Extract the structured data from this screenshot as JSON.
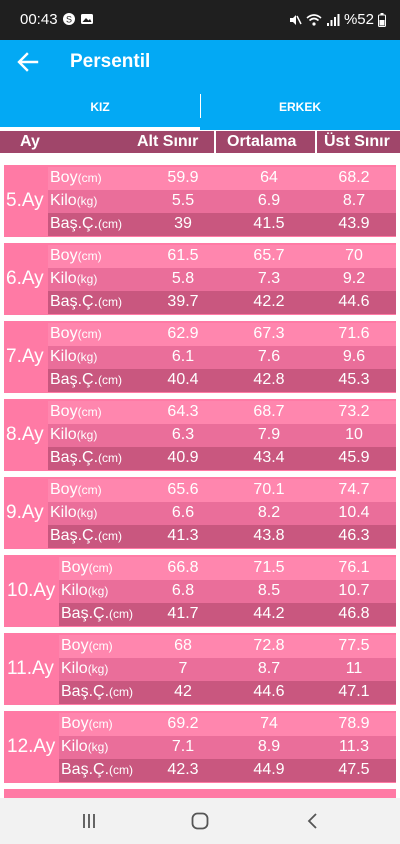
{
  "status": {
    "time": "00:43",
    "battery": "%52"
  },
  "appbar": {
    "title": "Persentil"
  },
  "tabs": [
    {
      "label": "KIZ"
    },
    {
      "label": "ERKEK"
    }
  ],
  "header": {
    "ay": "Ay",
    "alt": "Alt Sınır",
    "ort": "Ortalama",
    "ust": "Üst Sınır"
  },
  "row_labels": [
    {
      "name": "Boy",
      "unit": "(cm)"
    },
    {
      "name": "Kilo",
      "unit": "(kg)"
    },
    {
      "name": "Baş.Ç.",
      "unit": "(cm)"
    }
  ],
  "blocks": [
    {
      "ay": "5.Ay",
      "rows": [
        [
          "59.9",
          "64",
          "68.2"
        ],
        [
          "5.5",
          "6.9",
          "8.7"
        ],
        [
          "39",
          "41.5",
          "43.9"
        ]
      ]
    },
    {
      "ay": "6.Ay",
      "rows": [
        [
          "61.5",
          "65.7",
          "70"
        ],
        [
          "5.8",
          "7.3",
          "9.2"
        ],
        [
          "39.7",
          "42.2",
          "44.6"
        ]
      ]
    },
    {
      "ay": "7.Ay",
      "rows": [
        [
          "62.9",
          "67.3",
          "71.6"
        ],
        [
          "6.1",
          "7.6",
          "9.6"
        ],
        [
          "40.4",
          "42.8",
          "45.3"
        ]
      ]
    },
    {
      "ay": "8.Ay",
      "rows": [
        [
          "64.3",
          "68.7",
          "73.2"
        ],
        [
          "6.3",
          "7.9",
          "10"
        ],
        [
          "40.9",
          "43.4",
          "45.9"
        ]
      ]
    },
    {
      "ay": "9.Ay",
      "rows": [
        [
          "65.6",
          "70.1",
          "74.7"
        ],
        [
          "6.6",
          "8.2",
          "10.4"
        ],
        [
          "41.3",
          "43.8",
          "46.3"
        ]
      ]
    },
    {
      "ay": "10.Ay",
      "rows": [
        [
          "66.8",
          "71.5",
          "76.1"
        ],
        [
          "6.8",
          "8.5",
          "10.7"
        ],
        [
          "41.7",
          "44.2",
          "46.8"
        ]
      ]
    },
    {
      "ay": "11.Ay",
      "rows": [
        [
          "68",
          "72.8",
          "77.5"
        ],
        [
          "7",
          "8.7",
          "11"
        ],
        [
          "42",
          "44.6",
          "47.1"
        ]
      ]
    },
    {
      "ay": "12.Ay",
      "rows": [
        [
          "69.2",
          "74",
          "78.9"
        ],
        [
          "7.1",
          "8.9",
          "11.3"
        ],
        [
          "42.3",
          "44.9",
          "47.5"
        ]
      ]
    }
  ]
}
